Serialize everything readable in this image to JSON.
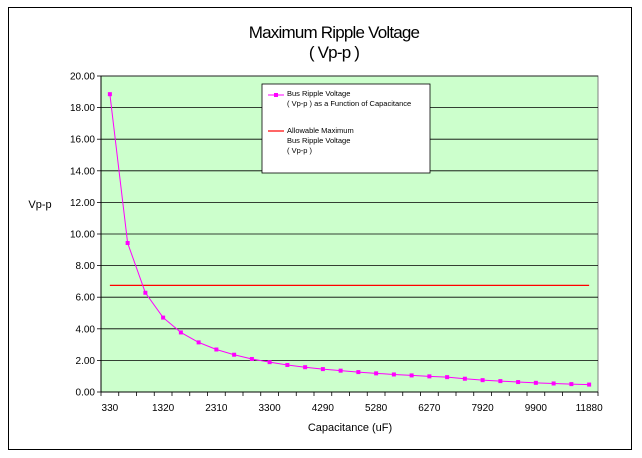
{
  "chart_data": {
    "type": "line",
    "title": "Maximum Ripple Voltage",
    "subtitle": "( Vp-p )",
    "xlabel": "Capacitance (uF)",
    "ylabel": "Vp-p",
    "ylim": [
      0,
      20
    ],
    "y_ticks": [
      "0.00",
      "2.00",
      "4.00",
      "6.00",
      "8.00",
      "10.00",
      "12.00",
      "14.00",
      "16.00",
      "18.00",
      "20.00"
    ],
    "x_tick_labels": [
      "330",
      "1320",
      "2310",
      "3300",
      "4290",
      "5280",
      "6270",
      "7920",
      "9900",
      "11880"
    ],
    "x_tick_label_positions": [
      0,
      3,
      6,
      9,
      12,
      15,
      18,
      21,
      24,
      27
    ],
    "grid": "horizontal",
    "plot_background": "#ccffcc",
    "legend_placement": "top-center",
    "series": [
      {
        "name": "Bus Ripple Voltage ( Vp-p ) as a Function of Capacitance",
        "legend_lines": [
          "Bus Ripple Voltage",
          "( Vp-p ) as a Function of Capacitance"
        ],
        "color": "#ff00ff",
        "marker": "square",
        "values": [
          18.85,
          9.43,
          6.28,
          4.71,
          3.77,
          3.14,
          2.69,
          2.36,
          2.09,
          1.89,
          1.71,
          1.57,
          1.45,
          1.35,
          1.26,
          1.18,
          1.11,
          1.05,
          0.99,
          0.94,
          0.84,
          0.75,
          0.69,
          0.63,
          0.58,
          0.54,
          0.5,
          0.47
        ]
      },
      {
        "name": "Allowable Maximum Bus Ripple Voltage ( Vp-p )",
        "legend_lines": [
          "Allowable Maximum",
          "Bus Ripple Voltage",
          "( Vp-p )"
        ],
        "color": "#ff0000",
        "marker": "none",
        "values": [
          6.75,
          6.75,
          6.75,
          6.75,
          6.75,
          6.75,
          6.75,
          6.75,
          6.75,
          6.75,
          6.75,
          6.75,
          6.75,
          6.75,
          6.75,
          6.75,
          6.75,
          6.75,
          6.75,
          6.75,
          6.75,
          6.75,
          6.75,
          6.75,
          6.75,
          6.75,
          6.75,
          6.75
        ]
      }
    ]
  }
}
